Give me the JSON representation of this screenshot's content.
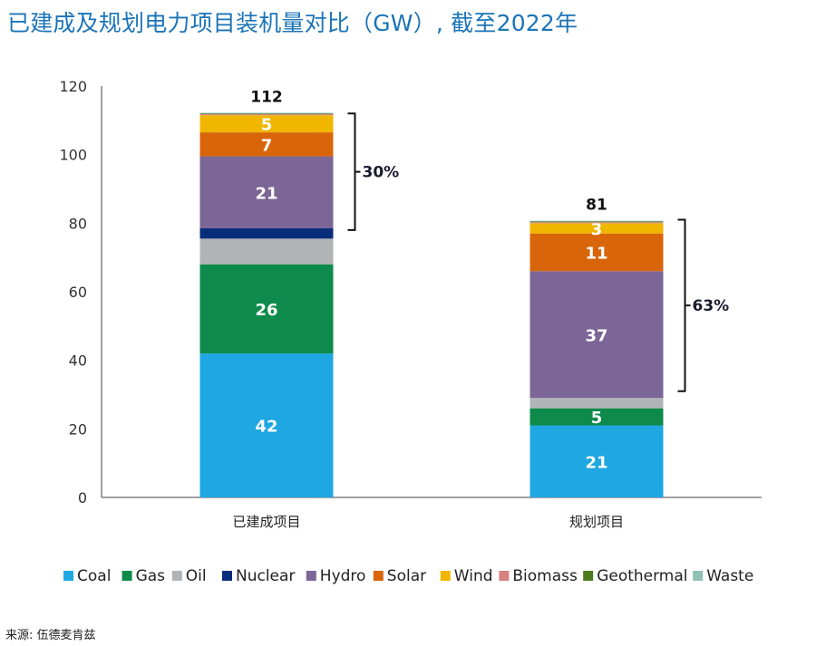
{
  "title": "已建成及规划电力项目装机量对比（GW）, 截至2022年",
  "source": "来源: 伍德麦肯兹",
  "chart_data": {
    "type": "bar",
    "stacked": true,
    "title": "已建成及规划电力项目装机量对比（GW）, 截至2022年",
    "xlabel": "",
    "ylabel": "",
    "ylim": [
      0,
      120
    ],
    "yticks": [
      0,
      20,
      40,
      60,
      80,
      100,
      120
    ],
    "grid": false,
    "legend_position": "bottom",
    "categories": [
      "已建成项目",
      "规划项目"
    ],
    "series": [
      {
        "name": "Coal",
        "color": "#1fa7e2",
        "values": [
          42,
          21
        ],
        "labels": [
          "42",
          "21"
        ]
      },
      {
        "name": "Gas",
        "color": "#0e8a4a",
        "values": [
          26,
          5
        ],
        "labels": [
          "26",
          "5"
        ]
      },
      {
        "name": "Oil",
        "color": "#b1b4b6",
        "values": [
          7.5,
          3
        ],
        "labels": [
          "",
          ""
        ]
      },
      {
        "name": "Nuclear",
        "color": "#0a2d7a",
        "values": [
          3,
          0
        ],
        "labels": [
          "",
          ""
        ]
      },
      {
        "name": "Hydro",
        "color": "#7b6697",
        "values": [
          21,
          37
        ],
        "labels": [
          "21",
          "37"
        ]
      },
      {
        "name": "Solar",
        "color": "#d9650b",
        "values": [
          7,
          11
        ],
        "labels": [
          "7",
          "11"
        ]
      },
      {
        "name": "Wind",
        "color": "#f1b600",
        "values": [
          5,
          3
        ],
        "labels": [
          "5",
          "3"
        ]
      },
      {
        "name": "Biomass",
        "color": "#d98080",
        "values": [
          0.3,
          0.3
        ],
        "labels": [
          "",
          ""
        ]
      },
      {
        "name": "Geothermal",
        "color": "#4e7a1e",
        "values": [
          0.2,
          0.2
        ],
        "labels": [
          "",
          ""
        ]
      },
      {
        "name": "Waste",
        "color": "#8fc1b5",
        "values": [
          0.2,
          0.2
        ],
        "labels": [
          "",
          ""
        ]
      }
    ],
    "totals": [
      "112",
      "81"
    ],
    "brackets": [
      {
        "category": "已建成项目",
        "from": 78,
        "to": 112,
        "label": "30%"
      },
      {
        "category": "规划项目",
        "from": 31,
        "to": 81,
        "label": "63%"
      }
    ]
  }
}
